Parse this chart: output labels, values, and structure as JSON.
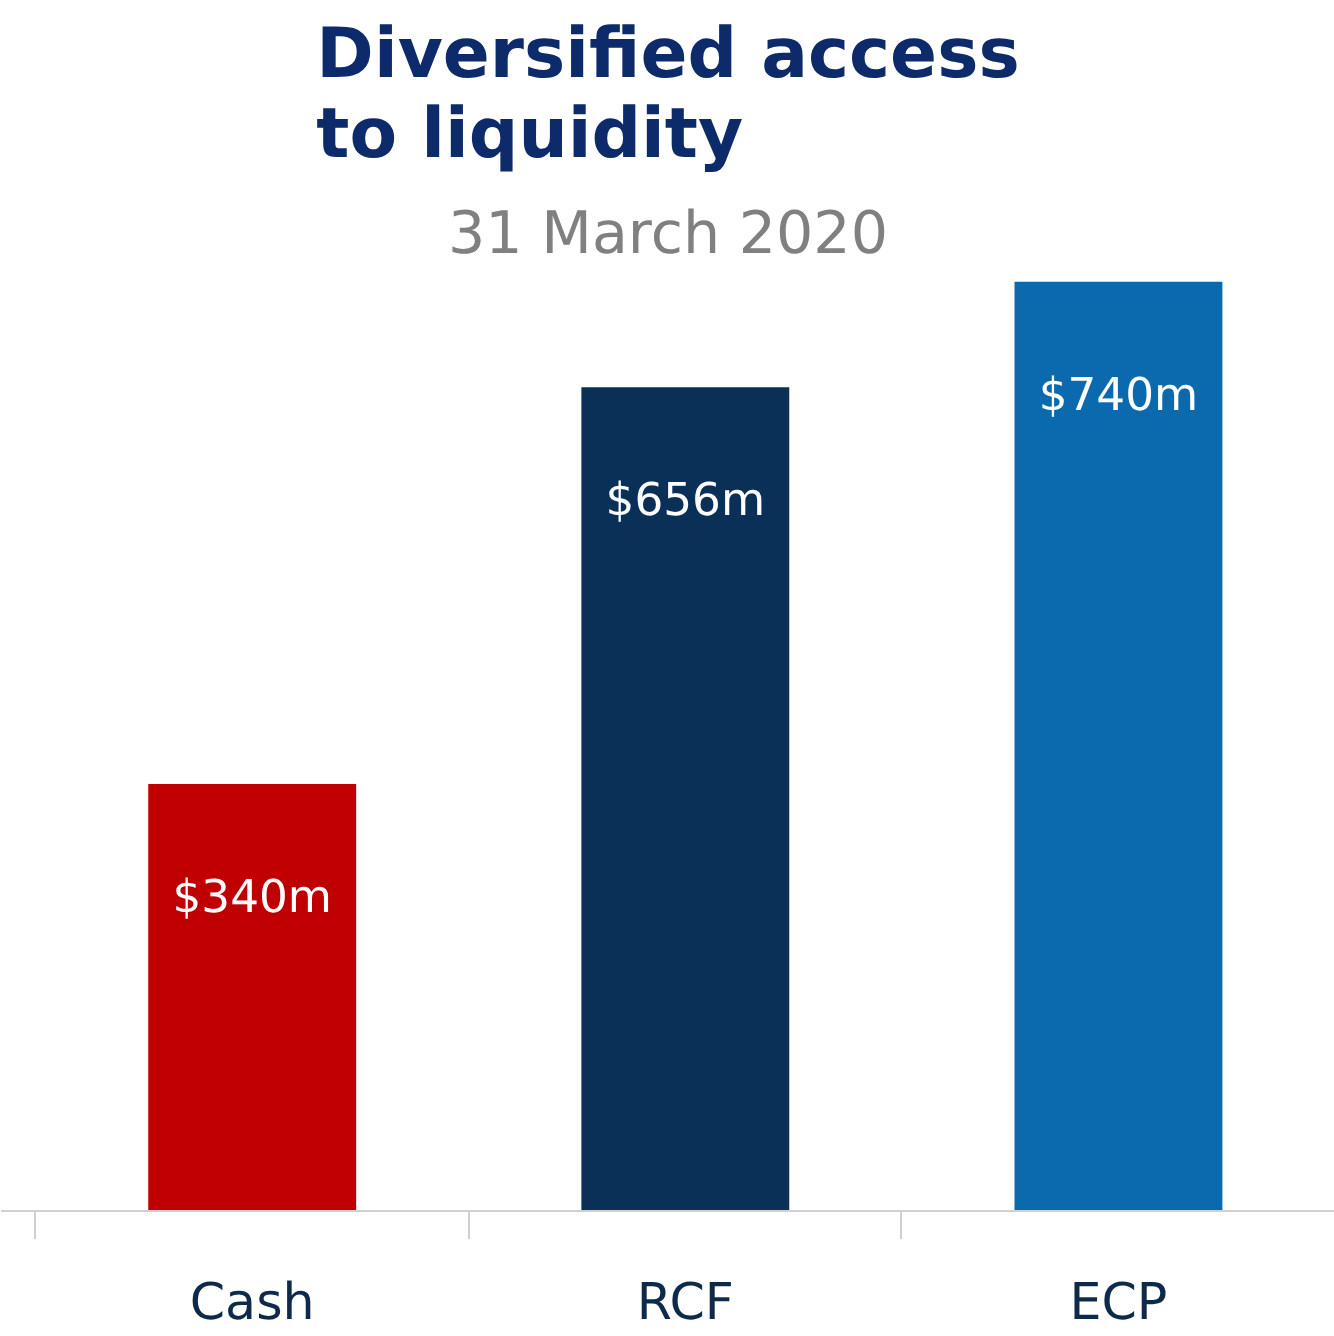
{
  "chart_data": {
    "type": "bar",
    "title": "Diversified access to liquidity",
    "subtitle": "31 March 2020",
    "categories": [
      "Cash",
      "RCF",
      "ECP"
    ],
    "values": [
      340,
      656,
      740
    ],
    "colors": [
      "#c00000",
      "#0b3057",
      "#0a6aad"
    ],
    "value_labels": [
      "$340m",
      "$656m",
      "$740m"
    ],
    "grid": false
  }
}
